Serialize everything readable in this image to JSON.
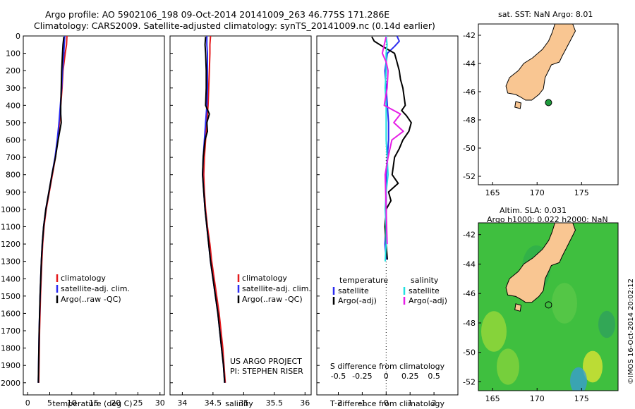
{
  "header": {
    "line1": "Argo profile: AO 5902106_198 09-Oct-2014 20141009_263 46.775S 171.286E",
    "line2": "Climatology: CARS2009. Satellite-adjusted climatology: synTS_20141009.nc (0.14d earlier)"
  },
  "maps": {
    "top_label": "sat. SST: NaN Argo: 8.01",
    "bottom_label1": "Altim. SLA: 0.031",
    "bottom_label2": "Argo h1000: 0.022 h2000: NaN",
    "stamp": "©IMOS 16-Oct-2014 20:02:12",
    "x_ticks": [
      "165",
      "170",
      "175"
    ],
    "y_ticks": [
      "-42",
      "-44",
      "-46",
      "-48",
      "-50",
      "-52"
    ],
    "float_lon": 171.286,
    "float_lat": -46.775,
    "colors": {
      "land": "#f9c692",
      "ocean_field": "#3fbf3f",
      "float_marker": "#1f9a3c"
    }
  },
  "chart_data": [
    {
      "type": "line",
      "xlabel": "temperature (deg C)",
      "ylabel": "",
      "xlim": [
        -1,
        31
      ],
      "ylim": [
        2070,
        0
      ],
      "x_ticks": [
        0,
        5,
        10,
        15,
        20,
        25,
        30
      ],
      "y_ticks": [
        0,
        100,
        200,
        300,
        400,
        500,
        600,
        700,
        800,
        900,
        1000,
        1100,
        1200,
        1300,
        1400,
        1500,
        1600,
        1700,
        1800,
        1900,
        2000
      ],
      "legend": [
        "climatology",
        "satellite-adj. clim.",
        "Argo(..raw -QC)"
      ],
      "legend_position": "lower-center",
      "series": [
        {
          "name": "climatology",
          "color": "#e41a1c",
          "depth": [
            0,
            50,
            100,
            200,
            300,
            400,
            500,
            600,
            700,
            800,
            900,
            1000,
            1100,
            1200,
            1300,
            1500,
            1700,
            2000
          ],
          "values": [
            8.9,
            8.8,
            8.5,
            8.0,
            7.8,
            7.5,
            7.2,
            6.8,
            6.3,
            5.6,
            4.9,
            4.2,
            3.7,
            3.4,
            3.2,
            2.9,
            2.7,
            2.5
          ]
        },
        {
          "name": "satellite-adj. clim.",
          "color": "#2b2bf0",
          "depth": [
            0,
            50,
            100,
            200,
            300,
            400,
            500,
            600,
            700,
            800,
            900,
            1000,
            1100,
            1200,
            1300,
            1500,
            1700,
            2000
          ],
          "values": [
            8.4,
            8.3,
            8.2,
            7.9,
            7.7,
            7.4,
            7.1,
            6.7,
            6.2,
            5.5,
            4.8,
            4.1,
            3.6,
            3.3,
            3.1,
            2.8,
            2.6,
            2.4
          ]
        },
        {
          "name": "Argo(..raw -QC)",
          "color": "#000000",
          "depth": [
            5,
            50,
            100,
            200,
            300,
            400,
            450,
            500,
            600,
            700,
            800,
            900,
            1000,
            1100,
            1200,
            1300,
            1500,
            1700,
            2000
          ],
          "values": [
            8.2,
            8.0,
            7.9,
            7.7,
            7.6,
            7.5,
            7.5,
            7.6,
            6.9,
            6.3,
            5.5,
            4.8,
            4.1,
            3.6,
            3.3,
            3.1,
            2.8,
            2.6,
            2.4
          ]
        }
      ]
    },
    {
      "type": "line",
      "xlabel": "salinity",
      "ylabel": "",
      "xlim": [
        33.8,
        36.1
      ],
      "ylim": [
        2070,
        0
      ],
      "x_ticks": [
        34,
        34.5,
        35,
        35.5,
        36
      ],
      "legend": [
        "climatology",
        "satellite-adj. clim.",
        "Argo(..raw -QC)"
      ],
      "legend_position": "lower-center",
      "annotations": [
        "US ARGO PROJECT",
        "PI: STEPHEN RISER"
      ],
      "series": [
        {
          "name": "climatology",
          "color": "#e41a1c",
          "depth": [
            0,
            50,
            100,
            200,
            300,
            400,
            500,
            600,
            700,
            800,
            900,
            1000,
            1100,
            1200,
            1300,
            1400,
            1500,
            1600,
            1700,
            1800,
            1900,
            2000
          ],
          "values": [
            34.46,
            34.45,
            34.45,
            34.44,
            34.43,
            34.42,
            34.4,
            34.38,
            34.36,
            34.35,
            34.36,
            34.38,
            34.41,
            34.45,
            34.48,
            34.52,
            34.56,
            34.6,
            34.63,
            34.66,
            34.68,
            34.7
          ]
        },
        {
          "name": "satellite-adj. clim.",
          "color": "#2b2bf0",
          "depth": [
            0,
            50,
            100,
            200,
            300,
            400,
            500,
            600,
            700,
            800,
            900,
            1000,
            1100,
            1200,
            1300,
            1400,
            1500,
            1600,
            1700,
            1800,
            1900,
            2000
          ],
          "values": [
            34.4,
            34.4,
            34.41,
            34.41,
            34.41,
            34.4,
            34.38,
            34.36,
            34.34,
            34.33,
            34.35,
            34.37,
            34.4,
            34.43,
            34.46,
            34.5,
            34.54,
            34.58,
            34.61,
            34.64,
            34.67,
            34.69
          ]
        },
        {
          "name": "Argo(..raw -QC)",
          "color": "#000000",
          "depth": [
            5,
            50,
            100,
            200,
            300,
            400,
            450,
            500,
            550,
            600,
            700,
            800,
            900,
            1000,
            1100,
            1200,
            1300,
            1400,
            1500,
            1600,
            1700,
            1800,
            1900,
            2000
          ],
          "values": [
            34.38,
            34.37,
            34.38,
            34.39,
            34.39,
            34.38,
            34.44,
            34.4,
            34.41,
            34.37,
            34.34,
            34.33,
            34.35,
            34.37,
            34.4,
            34.43,
            34.46,
            34.5,
            34.54,
            34.58,
            34.61,
            34.64,
            34.67,
            34.69
          ]
        }
      ]
    },
    {
      "type": "line",
      "xlabel": "T difference from climatology",
      "xlabel_top": "S difference from climatology",
      "ylabel": "",
      "xlim": [
        -2.9,
        3.0
      ],
      "ylim": [
        2070,
        0
      ],
      "x_ticks": [
        -2,
        -1,
        0,
        1,
        2
      ],
      "x_ticks_top": [
        "-0.5",
        "-0.25",
        "0",
        "0.25",
        "0.5"
      ],
      "legend_titles": [
        "temperature",
        "salinity"
      ],
      "legend": [
        "satellite",
        "Argo(-adj)",
        "satellite",
        "Argo(-adj)"
      ],
      "legend_position": "lower-center",
      "series": [
        {
          "name": "satellite",
          "group": "temperature",
          "color": "#2b2bf0",
          "depth": [
            0,
            30,
            60,
            100,
            200,
            300,
            400,
            500,
            600,
            700,
            800,
            900,
            1000,
            1100,
            1200,
            1290
          ],
          "values": [
            0.45,
            0.55,
            0.35,
            0.05,
            -0.05,
            0.0,
            0.05,
            0.1,
            0.1,
            0.05,
            0.0,
            0.0,
            0.0,
            0.0,
            -0.05,
            0.0
          ]
        },
        {
          "name": "Argo(-adj)",
          "group": "temperature",
          "color": "#000000",
          "depth": [
            5,
            30,
            60,
            100,
            150,
            200,
            250,
            300,
            350,
            400,
            430,
            460,
            500,
            550,
            600,
            650,
            700,
            800,
            850,
            900,
            950,
            1000,
            1100,
            1200,
            1290
          ],
          "values": [
            -0.6,
            -0.5,
            -0.15,
            0.35,
            0.45,
            0.55,
            0.6,
            0.7,
            0.75,
            0.8,
            0.65,
            0.85,
            1.05,
            0.95,
            0.7,
            0.55,
            0.35,
            0.25,
            0.5,
            0.1,
            0.2,
            0.0,
            -0.05,
            0.0,
            0.05
          ]
        },
        {
          "name": "satellite",
          "group": "salinity",
          "color": "#22e0e0",
          "depth": [
            0,
            50,
            100,
            200,
            300,
            400,
            500,
            600,
            700,
            800,
            900,
            1000,
            1100,
            1200,
            1300
          ],
          "values": [
            0.0,
            0.01,
            0.0,
            0.0,
            -0.01,
            0.0,
            0.0,
            0.0,
            0.01,
            0.02,
            0.0,
            -0.01,
            0.0,
            0.0,
            -0.01
          ]
        },
        {
          "name": "Argo(-adj)",
          "group": "salinity",
          "color": "#e61ee6",
          "depth": [
            5,
            50,
            100,
            150,
            200,
            300,
            400,
            450,
            500,
            550,
            600,
            700,
            800,
            1000,
            1200
          ],
          "values": [
            0.0,
            -0.02,
            -0.04,
            0.0,
            0.02,
            0.01,
            -0.02,
            0.15,
            0.08,
            0.18,
            0.06,
            0.02,
            -0.01,
            0.0,
            0.01
          ]
        }
      ]
    }
  ]
}
